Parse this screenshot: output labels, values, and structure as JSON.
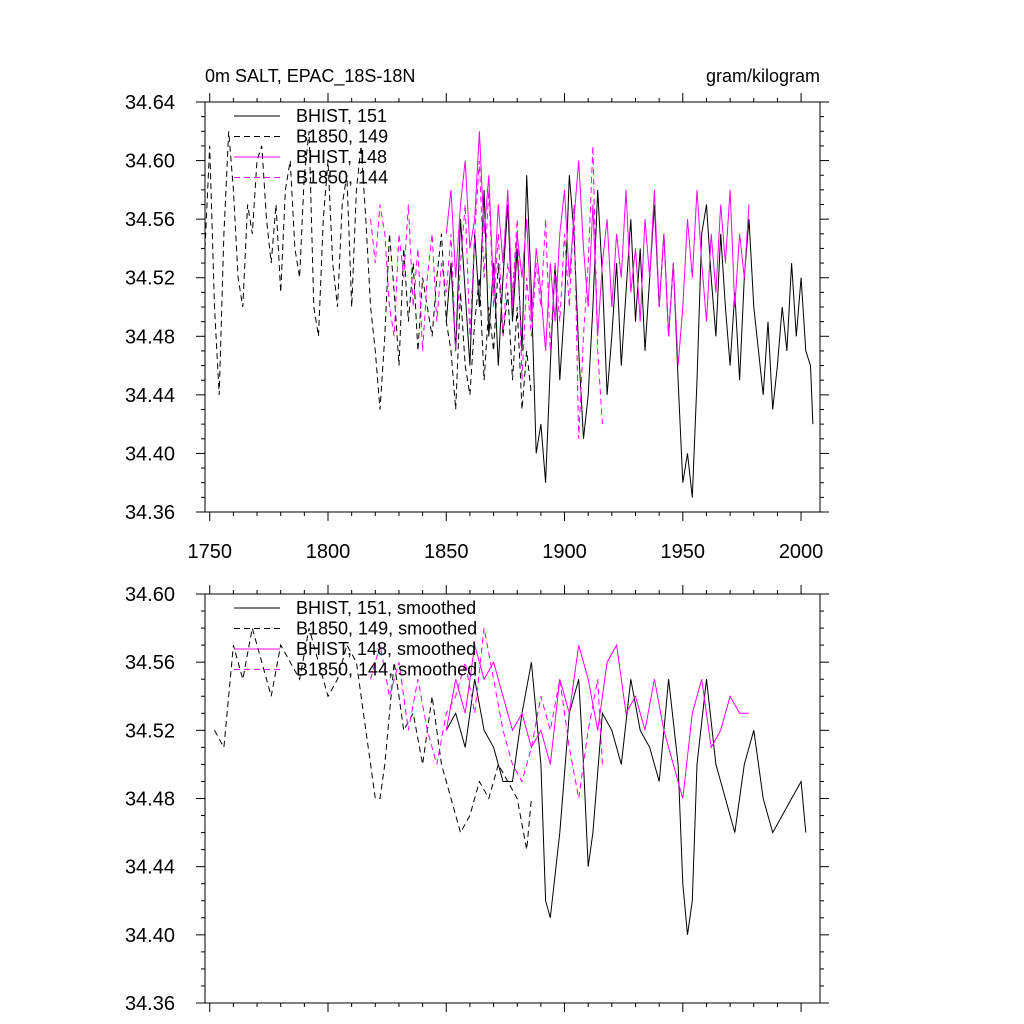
{
  "chart_data": [
    {
      "type": "line",
      "title_left": "0m SALT, EPAC_18S-18N",
      "title_right": "gram/kilogram",
      "xlim": [
        1748,
        2008
      ],
      "ylim": [
        34.36,
        34.64
      ],
      "xticks": [
        1750,
        1800,
        1850,
        1900,
        1950,
        2000
      ],
      "xtick_labels": [
        "1750",
        "1800",
        "1850",
        "1900",
        "1950",
        "2000"
      ],
      "yticks": [
        34.36,
        34.4,
        34.44,
        34.48,
        34.52,
        34.56,
        34.6,
        34.64
      ],
      "ytick_labels": [
        "34.36",
        "34.40",
        "34.44",
        "34.48",
        "34.52",
        "34.56",
        "34.60",
        "34.64"
      ],
      "legend": [
        "BHIST, 151",
        "B1850, 149",
        "BHIST, 148",
        "B1850, 144"
      ],
      "series": [
        {
          "name": "BHIST, 151",
          "color": "#000000",
          "dash": false,
          "x": [
            1850,
            1852,
            1854,
            1856,
            1858,
            1860,
            1862,
            1864,
            1866,
            1868,
            1870,
            1872,
            1874,
            1876,
            1878,
            1880,
            1882,
            1884,
            1886,
            1888,
            1890,
            1892,
            1894,
            1896,
            1898,
            1900,
            1902,
            1904,
            1906,
            1908,
            1910,
            1912,
            1914,
            1916,
            1918,
            1920,
            1922,
            1924,
            1926,
            1928,
            1930,
            1932,
            1934,
            1936,
            1938,
            1940,
            1942,
            1944,
            1946,
            1948,
            1950,
            1952,
            1954,
            1956,
            1958,
            1960,
            1962,
            1964,
            1966,
            1968,
            1970,
            1972,
            1974,
            1976,
            1978,
            1980,
            1982,
            1984,
            1986,
            1988,
            1990,
            1992,
            1994,
            1996,
            1998,
            2000,
            2002,
            2004,
            2005
          ],
          "values": [
            34.49,
            34.53,
            34.47,
            34.56,
            34.51,
            34.46,
            34.55,
            34.5,
            34.58,
            34.48,
            34.53,
            34.46,
            34.52,
            34.57,
            34.49,
            34.54,
            34.47,
            34.59,
            34.51,
            34.4,
            34.42,
            34.38,
            34.46,
            34.53,
            34.45,
            34.5,
            34.59,
            34.55,
            34.47,
            34.41,
            34.44,
            34.5,
            34.58,
            34.52,
            34.44,
            34.48,
            34.53,
            34.46,
            34.51,
            34.56,
            34.49,
            34.54,
            34.47,
            34.52,
            34.57,
            34.5,
            34.55,
            34.48,
            34.53,
            34.45,
            34.38,
            34.4,
            34.37,
            34.45,
            34.55,
            34.57,
            34.52,
            34.48,
            34.55,
            34.5,
            34.46,
            34.51,
            34.45,
            34.52,
            34.56,
            34.5,
            34.47,
            34.44,
            34.49,
            34.43,
            34.46,
            34.5,
            34.47,
            34.53,
            34.48,
            34.52,
            34.47,
            34.46,
            34.42
          ]
        },
        {
          "name": "B1850, 149",
          "color": "#000000",
          "dash": true,
          "x": [
            1748,
            1750,
            1752,
            1754,
            1756,
            1758,
            1760,
            1762,
            1764,
            1766,
            1768,
            1770,
            1772,
            1774,
            1776,
            1778,
            1780,
            1782,
            1784,
            1786,
            1788,
            1790,
            1792,
            1794,
            1796,
            1798,
            1800,
            1802,
            1804,
            1806,
            1808,
            1810,
            1812,
            1814,
            1816,
            1818,
            1820,
            1822,
            1824,
            1826,
            1828,
            1830,
            1832,
            1834,
            1836,
            1838,
            1840,
            1842,
            1844,
            1846,
            1848,
            1850,
            1852,
            1854,
            1856,
            1858,
            1860,
            1862,
            1864,
            1866,
            1868,
            1870,
            1872,
            1874,
            1876,
            1878,
            1880,
            1882,
            1884,
            1886
          ],
          "values": [
            34.54,
            34.61,
            34.5,
            34.44,
            34.55,
            34.62,
            34.58,
            34.52,
            34.5,
            34.57,
            34.55,
            34.6,
            34.61,
            34.56,
            34.53,
            34.57,
            34.51,
            34.58,
            34.6,
            34.54,
            34.52,
            34.59,
            34.62,
            34.5,
            34.48,
            34.56,
            34.6,
            34.53,
            34.5,
            34.57,
            34.59,
            34.5,
            34.58,
            34.61,
            34.56,
            34.5,
            34.47,
            34.43,
            34.48,
            34.55,
            34.51,
            34.46,
            34.54,
            34.49,
            34.53,
            34.47,
            34.52,
            34.5,
            34.48,
            34.52,
            34.55,
            34.49,
            34.47,
            34.43,
            34.51,
            34.46,
            34.44,
            34.49,
            34.52,
            34.45,
            34.5,
            34.47,
            34.53,
            34.48,
            34.51,
            34.45,
            34.5,
            34.43,
            34.47,
            34.44
          ]
        },
        {
          "name": "BHIST, 148",
          "color": "#ff00ff",
          "dash": false,
          "x": [
            1850,
            1852,
            1854,
            1856,
            1858,
            1860,
            1862,
            1864,
            1866,
            1868,
            1870,
            1872,
            1874,
            1876,
            1878,
            1880,
            1882,
            1884,
            1886,
            1888,
            1890,
            1892,
            1894,
            1896,
            1898,
            1900,
            1902,
            1904,
            1906,
            1908,
            1910,
            1912,
            1914,
            1916,
            1918,
            1920,
            1922,
            1924,
            1926,
            1928,
            1930,
            1932,
            1934,
            1936,
            1938,
            1940,
            1942,
            1944,
            1946,
            1948,
            1950,
            1952,
            1954,
            1956,
            1958,
            1960,
            1962,
            1964,
            1966,
            1968,
            1970,
            1972,
            1974,
            1976,
            1978
          ],
          "values": [
            34.55,
            34.58,
            34.52,
            34.57,
            34.6,
            34.54,
            34.56,
            34.62,
            34.55,
            34.59,
            34.51,
            34.57,
            34.53,
            34.58,
            34.5,
            34.55,
            34.52,
            34.56,
            34.49,
            34.54,
            34.51,
            34.47,
            34.53,
            34.49,
            34.55,
            34.58,
            34.52,
            34.56,
            34.6,
            34.54,
            34.5,
            34.57,
            34.48,
            34.53,
            34.56,
            34.5,
            34.55,
            34.52,
            34.58,
            34.51,
            34.54,
            34.49,
            34.56,
            34.52,
            34.58,
            34.5,
            34.55,
            34.48,
            34.53,
            34.46,
            34.5,
            34.56,
            34.52,
            34.58,
            34.53,
            34.49,
            34.55,
            34.51,
            34.57,
            34.53,
            34.58,
            34.5,
            34.55,
            34.52,
            34.57
          ]
        },
        {
          "name": "B1850, 144",
          "color": "#ff00ff",
          "dash": true,
          "x": [
            1818,
            1820,
            1822,
            1824,
            1826,
            1828,
            1830,
            1832,
            1834,
            1836,
            1838,
            1840,
            1842,
            1844,
            1846,
            1848,
            1850,
            1852,
            1854,
            1856,
            1858,
            1860,
            1862,
            1864,
            1866,
            1868,
            1870,
            1872,
            1874,
            1876,
            1878,
            1880,
            1882,
            1884,
            1886,
            1888,
            1890,
            1892,
            1894,
            1896,
            1898,
            1900,
            1902,
            1904,
            1906,
            1908,
            1910,
            1912,
            1914,
            1916
          ],
          "values": [
            34.56,
            34.53,
            34.57,
            34.55,
            34.5,
            34.48,
            34.55,
            34.52,
            34.57,
            34.5,
            34.54,
            34.47,
            34.52,
            34.55,
            34.49,
            34.53,
            34.51,
            34.55,
            34.47,
            34.53,
            34.57,
            34.48,
            34.55,
            34.6,
            34.52,
            34.58,
            34.5,
            34.55,
            34.48,
            34.53,
            34.51,
            34.56,
            34.45,
            34.52,
            34.48,
            34.53,
            34.5,
            34.56,
            34.47,
            34.53,
            34.49,
            34.55,
            34.5,
            34.57,
            34.41,
            34.48,
            34.53,
            34.61,
            34.47,
            34.42
          ]
        }
      ]
    },
    {
      "type": "line",
      "xlim": [
        1748,
        2008
      ],
      "ylim": [
        34.36,
        34.6
      ],
      "xticks": [
        1750,
        1800,
        1850,
        1900,
        1950,
        2000
      ],
      "yticks": [
        34.36,
        34.4,
        34.44,
        34.48,
        34.52,
        34.56,
        34.6
      ],
      "ytick_labels": [
        "34.36",
        "34.40",
        "34.44",
        "34.48",
        "34.52",
        "34.56",
        "34.60"
      ],
      "legend": [
        "BHIST, 151, smoothed",
        "B1850, 149, smoothed",
        "BHIST, 148, smoothed",
        "B1850, 144, smoothed"
      ],
      "series": [
        {
          "name": "BHIST, 151, smoothed",
          "color": "#000000",
          "dash": false,
          "x": [
            1850,
            1854,
            1858,
            1862,
            1866,
            1870,
            1874,
            1878,
            1882,
            1886,
            1890,
            1892,
            1894,
            1898,
            1902,
            1906,
            1908,
            1910,
            1912,
            1916,
            1920,
            1924,
            1928,
            1932,
            1936,
            1940,
            1944,
            1948,
            1950,
            1952,
            1954,
            1956,
            1960,
            1964,
            1968,
            1972,
            1976,
            1980,
            1984,
            1988,
            1992,
            1996,
            2000,
            2002
          ],
          "values": [
            34.52,
            34.53,
            34.51,
            34.55,
            34.52,
            34.51,
            34.49,
            34.49,
            34.53,
            34.56,
            34.5,
            34.42,
            34.41,
            34.46,
            34.53,
            34.55,
            34.5,
            34.44,
            34.46,
            34.53,
            34.52,
            34.5,
            34.55,
            34.52,
            34.51,
            34.49,
            34.55,
            34.5,
            34.43,
            34.4,
            34.42,
            34.5,
            34.55,
            34.5,
            34.48,
            34.46,
            34.5,
            34.52,
            34.48,
            34.46,
            34.47,
            34.48,
            34.49,
            34.46
          ]
        },
        {
          "name": "B1850, 149, smoothed",
          "color": "#000000",
          "dash": true,
          "x": [
            1752,
            1756,
            1760,
            1764,
            1768,
            1772,
            1776,
            1780,
            1784,
            1788,
            1792,
            1796,
            1800,
            1804,
            1808,
            1812,
            1816,
            1818,
            1820,
            1822,
            1824,
            1828,
            1832,
            1836,
            1840,
            1844,
            1846,
            1848,
            1852,
            1856,
            1860,
            1864,
            1868,
            1872,
            1876,
            1880,
            1884,
            1886
          ],
          "values": [
            34.52,
            34.51,
            34.57,
            34.55,
            34.58,
            34.56,
            34.54,
            34.57,
            34.56,
            34.55,
            34.58,
            34.56,
            34.54,
            34.55,
            34.57,
            34.56,
            34.52,
            34.5,
            34.48,
            34.48,
            34.5,
            34.56,
            34.52,
            34.53,
            34.5,
            34.54,
            34.52,
            34.5,
            34.48,
            34.46,
            34.47,
            34.49,
            34.48,
            34.5,
            34.49,
            34.48,
            34.45,
            34.48
          ]
        },
        {
          "name": "BHIST, 148, smoothed",
          "color": "#ff00ff",
          "dash": false,
          "x": [
            1850,
            1854,
            1858,
            1862,
            1866,
            1870,
            1874,
            1878,
            1882,
            1886,
            1890,
            1894,
            1898,
            1902,
            1906,
            1910,
            1914,
            1918,
            1922,
            1926,
            1930,
            1934,
            1938,
            1942,
            1946,
            1950,
            1954,
            1958,
            1962,
            1966,
            1970,
            1974,
            1978
          ],
          "values": [
            34.52,
            34.55,
            34.53,
            34.57,
            34.55,
            34.56,
            34.54,
            34.52,
            34.53,
            34.51,
            34.52,
            34.5,
            34.55,
            34.53,
            34.57,
            34.55,
            34.52,
            34.56,
            34.57,
            34.53,
            34.54,
            34.52,
            34.55,
            34.52,
            34.5,
            34.48,
            34.53,
            34.55,
            34.51,
            34.52,
            34.54,
            34.53,
            34.53
          ]
        },
        {
          "name": "B1850, 144, smoothed",
          "color": "#ff00ff",
          "dash": true,
          "x": [
            1818,
            1822,
            1826,
            1830,
            1834,
            1838,
            1842,
            1846,
            1850,
            1854,
            1858,
            1862,
            1866,
            1870,
            1874,
            1878,
            1882,
            1886,
            1890,
            1894,
            1898,
            1902,
            1906,
            1910,
            1914,
            1916
          ],
          "values": [
            34.55,
            34.57,
            34.54,
            34.56,
            34.52,
            34.55,
            34.52,
            34.5,
            34.53,
            34.54,
            34.56,
            34.53,
            34.58,
            34.55,
            34.52,
            34.5,
            34.49,
            34.51,
            34.54,
            34.52,
            34.55,
            34.51,
            34.48,
            34.52,
            34.55,
            34.5
          ]
        }
      ]
    }
  ]
}
